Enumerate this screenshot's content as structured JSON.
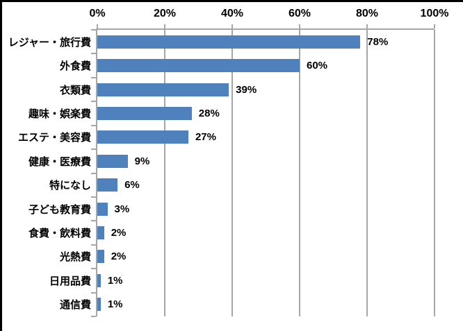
{
  "chart_data": {
    "type": "bar",
    "orientation": "horizontal",
    "title": "",
    "categories": [
      "レジャー・旅行費",
      "外食費",
      "衣類費",
      "趣味・娯楽費",
      "エステ・美容費",
      "健康・医療費",
      "特になし",
      "子ども教育費",
      "食費・飲料費",
      "光熱費",
      "日用品費",
      "通信費"
    ],
    "values": [
      78,
      60,
      39,
      28,
      27,
      9,
      6,
      3,
      2,
      2,
      1,
      1
    ],
    "value_labels": [
      "78%",
      "60%",
      "39%",
      "28%",
      "27%",
      "9%",
      "6%",
      "3%",
      "2%",
      "2%",
      "1%",
      "1%"
    ],
    "x_axis": {
      "position": "top",
      "min": 0,
      "max": 100,
      "tick_interval": 20,
      "tick_labels": [
        "0%",
        "20%",
        "40%",
        "60%",
        "80%",
        "100%"
      ]
    },
    "grid": true,
    "legend": false,
    "colors": {
      "bar": "#4F81BD",
      "gridline": "#A6A6A6",
      "axis": "#A6A6A6",
      "text": "#000000",
      "background": "#FFFFFF",
      "frame_border": "#000000"
    }
  }
}
